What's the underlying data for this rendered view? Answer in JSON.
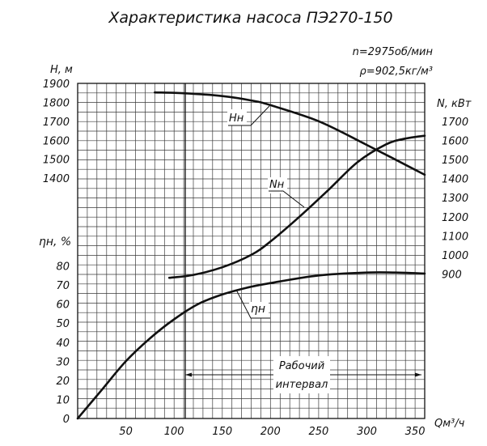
{
  "chart_data": {
    "type": "line",
    "title": "Характеристика насоса ПЭ270-150",
    "params": {
      "speed": "n=2975об/мин",
      "density": "ρ=902,5кг/м³"
    },
    "x": {
      "label": "Qм³/ч",
      "range": [
        0,
        360
      ],
      "ticks": [
        50,
        100,
        150,
        200,
        250,
        300,
        350
      ]
    },
    "axes": {
      "head": {
        "label": "Н, м",
        "range": [
          1300,
          1900
        ],
        "ticks": [
          1400,
          1500,
          1600,
          1700,
          1800,
          1900
        ]
      },
      "power": {
        "label": "N, кВт",
        "range": [
          800,
          1700
        ],
        "ticks": [
          900,
          1000,
          1100,
          1200,
          1300,
          1400,
          1500,
          1600,
          1700
        ]
      },
      "eff": {
        "label": "ηн, %",
        "range": [
          0,
          90
        ],
        "ticks": [
          0,
          10,
          20,
          30,
          40,
          50,
          60,
          70,
          80
        ]
      }
    },
    "series": [
      {
        "name": "Нн",
        "axis": "head",
        "points": [
          [
            80,
            1852
          ],
          [
            110,
            1848
          ],
          [
            150,
            1833
          ],
          [
            180,
            1810
          ],
          [
            200,
            1785
          ],
          [
            250,
            1700
          ],
          [
            300,
            1575
          ],
          [
            360,
            1418
          ]
        ]
      },
      {
        "name": "Nн",
        "axis": "power",
        "points": [
          [
            95,
            880
          ],
          [
            120,
            895
          ],
          [
            150,
            935
          ],
          [
            180,
            1000
          ],
          [
            200,
            1070
          ],
          [
            230,
            1200
          ],
          [
            260,
            1340
          ],
          [
            290,
            1485
          ],
          [
            320,
            1580
          ],
          [
            340,
            1610
          ],
          [
            360,
            1625
          ]
        ]
      },
      {
        "name": "ηн",
        "axis": "eff",
        "points": [
          [
            0,
            0
          ],
          [
            25,
            15
          ],
          [
            50,
            30
          ],
          [
            75,
            42
          ],
          [
            100,
            52
          ],
          [
            125,
            60
          ],
          [
            150,
            65
          ],
          [
            175,
            68.5
          ],
          [
            200,
            71
          ],
          [
            250,
            75
          ],
          [
            300,
            76.5
          ],
          [
            330,
            76.5
          ],
          [
            360,
            76
          ]
        ]
      }
    ],
    "working_interval": {
      "label_1": "Рабочий",
      "label_2": "интервал",
      "from": 112,
      "to": 360
    },
    "grid": true
  }
}
